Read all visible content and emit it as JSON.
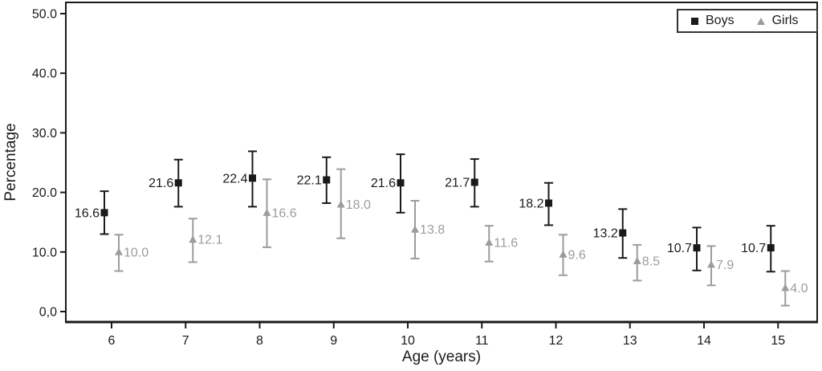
{
  "chart_data": {
    "type": "scatter",
    "subtype": "point-with-error-bars",
    "title": "",
    "xlabel": "Age (years)",
    "ylabel": "Percentage",
    "x": [
      6,
      7,
      8,
      9,
      10,
      11,
      12,
      13,
      14,
      15
    ],
    "x_tick_labels": [
      "6",
      "7",
      "8",
      "9",
      "10",
      "11",
      "12",
      "13",
      "14",
      "15"
    ],
    "y_ticks": [
      0,
      10,
      20,
      30,
      40,
      50
    ],
    "y_tick_labels": [
      "0,0",
      "10.0",
      "20.0",
      "30.0",
      "40.0",
      "50.0"
    ],
    "ylim": [
      0,
      50
    ],
    "grid": false,
    "legend_position": "top-right",
    "series": [
      {
        "name": "Boys",
        "marker": "square",
        "color": "#1a1a1a",
        "label_color": "#1a1a1a",
        "label_side": "left",
        "values": [
          16.6,
          21.6,
          22.4,
          22.1,
          21.6,
          21.7,
          18.2,
          13.2,
          10.7,
          10.7
        ],
        "point_labels": [
          "16.6",
          "21.6",
          "22.4",
          "22.1",
          "21.6",
          "21.7",
          "18.2",
          "13.2",
          "10.7",
          "10.7"
        ],
        "ci_low": [
          13.0,
          17.6,
          17.6,
          18.2,
          16.6,
          17.6,
          14.5,
          9.0,
          6.9,
          6.7
        ],
        "ci_high": [
          20.2,
          25.5,
          26.9,
          25.9,
          26.4,
          25.6,
          21.6,
          17.2,
          14.1,
          14.4
        ]
      },
      {
        "name": "Girls",
        "marker": "triangle",
        "color": "#9c9c9c",
        "label_color": "#9c9c9c",
        "label_side": "right",
        "values": [
          10.0,
          12.1,
          16.6,
          18.0,
          13.8,
          11.6,
          9.6,
          8.5,
          7.9,
          4.0
        ],
        "point_labels": [
          "10.0",
          "12.1",
          "16.6",
          "18.0",
          "13.8",
          "11.6",
          "9.6",
          "8.5",
          "7.9",
          "4.0"
        ],
        "ci_low": [
          6.8,
          8.3,
          10.8,
          12.3,
          8.9,
          8.4,
          6.1,
          5.2,
          4.4,
          1.0
        ],
        "ci_high": [
          12.9,
          15.6,
          22.2,
          23.9,
          18.6,
          14.4,
          12.9,
          11.2,
          11.0,
          6.8
        ]
      }
    ]
  }
}
